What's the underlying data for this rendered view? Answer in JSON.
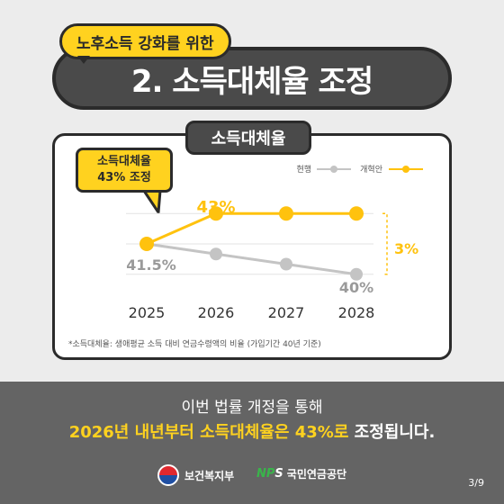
{
  "header": {
    "subtitle": "노후소득 강화를 위한",
    "title": "2. 소득대체율 조정"
  },
  "card": {
    "tab_label": "소득대체율",
    "callout_line1": "소득대체율",
    "callout_line2": "43% 조정",
    "footnote": "*소득대체율: 생애평균 소득 대비 연금수령액의 비율 (가입기간 40년 기준)"
  },
  "chart_data": {
    "type": "line",
    "x": [
      "2025",
      "2026",
      "2027",
      "2028"
    ],
    "series": [
      {
        "name": "현행",
        "values": [
          41.5,
          41.0,
          40.5,
          40.0
        ],
        "color": "#c4c4c4"
      },
      {
        "name": "개혁안",
        "values": [
          41.5,
          43.0,
          43.0,
          43.0
        ],
        "color": "#ffc20e"
      }
    ],
    "data_labels": {
      "start": "41.5%",
      "reform": "43%",
      "current_end": "40%"
    },
    "diff_label": "3%",
    "ylim": [
      39.5,
      43.5
    ],
    "grid": true,
    "legend_position": "top-right"
  },
  "footer": {
    "line1": "이번 법률 개정을 통해",
    "line2_highlight": "2026년 내년부터 소득대체율은 43%로",
    "line2_rest": " 조정됩니다.",
    "logo_mohw": "보건복지부",
    "logo_nps_mark_prefix": "NP",
    "logo_nps_mark_suffix": "S",
    "logo_nps": "국민연금공단",
    "page_number": "3/9"
  },
  "colors": {
    "accent": "#ffc20e",
    "dark": "#4a4a4a",
    "footer_bg": "#646464"
  }
}
